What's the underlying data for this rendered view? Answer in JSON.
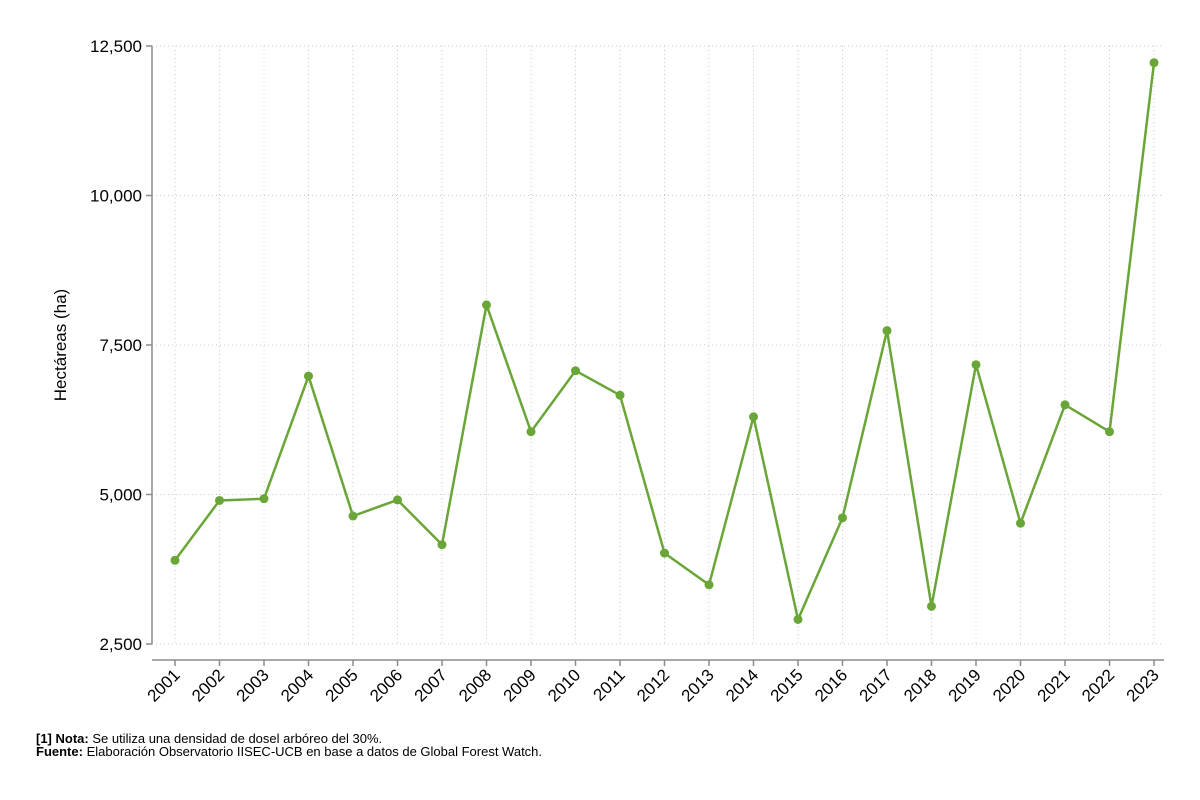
{
  "chart_data": {
    "type": "line",
    "ylabel": "Hectáreas (ha)",
    "xlabel": "",
    "ylim": [
      2500,
      12500
    ],
    "yticks": [
      2500,
      5000,
      7500,
      10000,
      12500
    ],
    "ytick_labels": [
      "2,500",
      "5,000",
      "7,500",
      "10,000",
      "12,500"
    ],
    "grid": true,
    "categories": [
      "2001",
      "2002",
      "2003",
      "2004",
      "2005",
      "2006",
      "2007",
      "2008",
      "2009",
      "2010",
      "2011",
      "2012",
      "2013",
      "2014",
      "2015",
      "2016",
      "2017",
      "2018",
      "2019",
      "2020",
      "2021",
      "2022",
      "2023"
    ],
    "series": [
      {
        "values": [
          3900,
          4900,
          4930,
          6980,
          4640,
          4910,
          4160,
          8170,
          6050,
          7070,
          6660,
          4020,
          3490,
          6300,
          2910,
          4610,
          7740,
          3130,
          7170,
          4520,
          6500,
          6050,
          12220
        ]
      }
    ],
    "colors": {
      "line": "#6aa637",
      "grid": "#c8c8c8",
      "axis": "#8c8c8c"
    }
  },
  "notes": {
    "line1_bold": "[1] Nota:",
    "line1_text": " Se utiliza una densidad de dosel arbóreo del 30%.",
    "line2_bold": "Fuente:",
    "line2_text": " Elaboración Observatorio IISEC-UCB en base a datos de Global Forest Watch."
  }
}
